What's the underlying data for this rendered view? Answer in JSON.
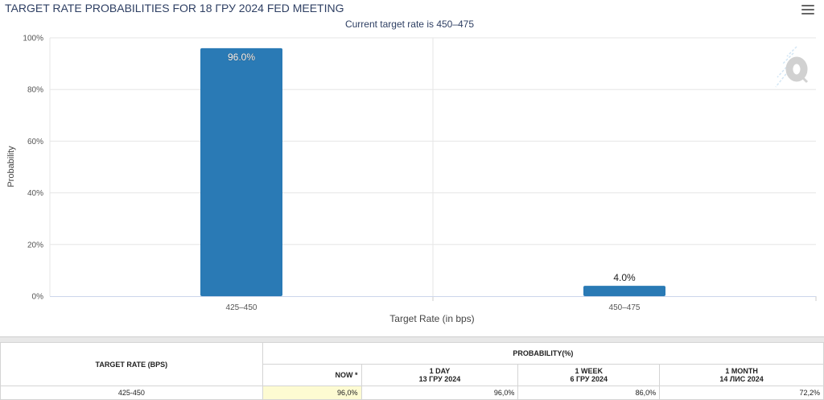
{
  "chart_data": {
    "type": "bar",
    "title": "TARGET RATE PROBABILITIES FOR 18 ГРУ 2024 FED MEETING",
    "subtitle": "Current target rate is 450–475",
    "xlabel": "Target Rate (in bps)",
    "ylabel": "Probability",
    "categories": [
      "425–450",
      "450–475"
    ],
    "values": [
      96.0,
      4.0
    ],
    "data_labels": [
      "96.0%",
      "4.0%"
    ],
    "ylim": [
      0,
      100
    ],
    "yticks": [
      "0%",
      "20%",
      "40%",
      "60%",
      "80%",
      "100%"
    ],
    "grid": true,
    "bar_color": "#2a7ab5"
  },
  "chart": {
    "menu_icon": "hamburger-menu-icon",
    "watermark_icon": "q-logo-icon"
  },
  "table": {
    "target_rate_header": "TARGET RATE (BPS)",
    "probability_header": "PROBABILITY(%)",
    "columns": [
      {
        "label": "NOW *",
        "date": ""
      },
      {
        "label": "1 DAY",
        "date": "13 ГРУ 2024"
      },
      {
        "label": "1 WEEK",
        "date": "6 ГРУ 2024"
      },
      {
        "label": "1 MONTH",
        "date": "14 ЛИС 2024"
      }
    ],
    "rows": [
      {
        "rate": "425-450",
        "now": "96,0%",
        "day": "96,0%",
        "week": "86,0%",
        "month": "72,2%"
      }
    ]
  }
}
